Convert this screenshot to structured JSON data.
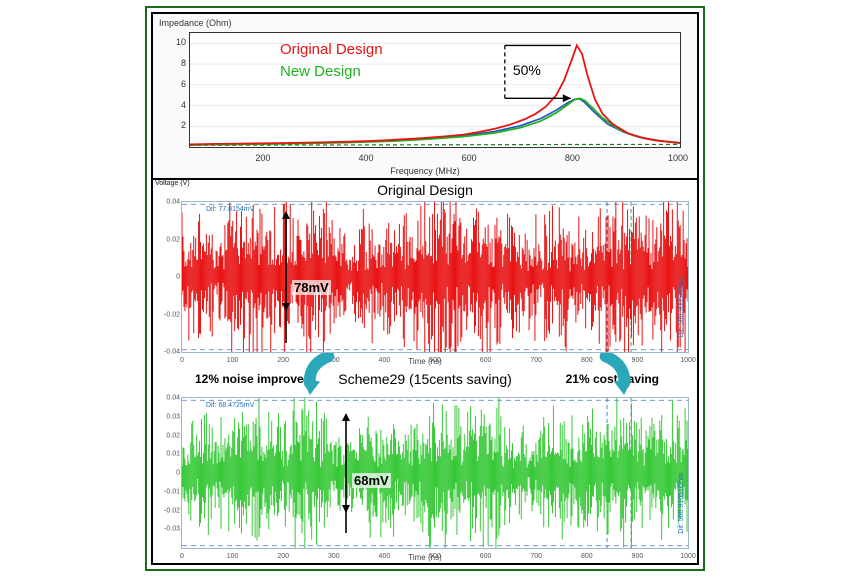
{
  "colors": {
    "frame_border": "#1a6b1a",
    "panel_border": "#000000",
    "plot_bg": "#ffffff",
    "axis_color": "#333333",
    "gridline": "#d8d8d8",
    "series_original": "#e81313",
    "series_new": "#1fb21f",
    "series_blue": "#2653c9",
    "series_dashgreen": "#1b7c1b",
    "noise_original": "#e81313",
    "noise_new": "#37c837",
    "arrow_fill": "#2aa7b8",
    "arrow_stroke": "#0e6b78",
    "marker_blue": "#1b6dbd",
    "marker_green": "#0f8a3a",
    "marker_dash": "#4a74c4"
  },
  "top_chart": {
    "type": "line",
    "y_title": "Impedance (Ohm)",
    "x_title": "Frequency (MHz)",
    "xlim": [
      50,
      1000
    ],
    "ylim": [
      0,
      11
    ],
    "x_ticks": [
      200,
      400,
      600,
      800,
      1000
    ],
    "y_ticks": [
      2,
      4,
      6,
      8,
      10
    ],
    "legend": {
      "original": {
        "text": "Original Design",
        "color": "#e81313"
      },
      "new": {
        "text": "New Design",
        "color": "#1fb21f"
      }
    },
    "callout": {
      "text": "50%",
      "from_y": 9.8,
      "to_y": 4.7
    },
    "series": {
      "original": [
        [
          50,
          0.25
        ],
        [
          100,
          0.3
        ],
        [
          150,
          0.33
        ],
        [
          200,
          0.36
        ],
        [
          250,
          0.4
        ],
        [
          300,
          0.44
        ],
        [
          350,
          0.5
        ],
        [
          400,
          0.58
        ],
        [
          450,
          0.7
        ],
        [
          500,
          0.85
        ],
        [
          550,
          1.05
        ],
        [
          580,
          1.2
        ],
        [
          610,
          1.45
        ],
        [
          640,
          1.75
        ],
        [
          670,
          2.15
        ],
        [
          700,
          2.7
        ],
        [
          720,
          3.2
        ],
        [
          740,
          3.9
        ],
        [
          760,
          5.0
        ],
        [
          775,
          6.4
        ],
        [
          790,
          8.4
        ],
        [
          800,
          9.8
        ],
        [
          810,
          9.0
        ],
        [
          820,
          7.0
        ],
        [
          835,
          4.6
        ],
        [
          850,
          3.2
        ],
        [
          870,
          2.2
        ],
        [
          900,
          1.3
        ],
        [
          930,
          0.85
        ],
        [
          960,
          0.6
        ],
        [
          1000,
          0.4
        ]
      ],
      "new": [
        [
          50,
          0.2
        ],
        [
          150,
          0.27
        ],
        [
          250,
          0.33
        ],
        [
          350,
          0.42
        ],
        [
          450,
          0.58
        ],
        [
          520,
          0.78
        ],
        [
          580,
          1.0
        ],
        [
          640,
          1.35
        ],
        [
          690,
          1.85
        ],
        [
          730,
          2.5
        ],
        [
          760,
          3.3
        ],
        [
          780,
          4.0
        ],
        [
          795,
          4.55
        ],
        [
          805,
          4.7
        ],
        [
          815,
          4.5
        ],
        [
          830,
          3.8
        ],
        [
          850,
          2.8
        ],
        [
          880,
          1.75
        ],
        [
          910,
          1.1
        ],
        [
          950,
          0.65
        ],
        [
          1000,
          0.38
        ]
      ],
      "blue": [
        [
          50,
          0.2
        ],
        [
          150,
          0.27
        ],
        [
          250,
          0.34
        ],
        [
          350,
          0.44
        ],
        [
          450,
          0.62
        ],
        [
          520,
          0.85
        ],
        [
          580,
          1.1
        ],
        [
          640,
          1.5
        ],
        [
          690,
          2.05
        ],
        [
          730,
          2.75
        ],
        [
          760,
          3.55
        ],
        [
          780,
          4.2
        ],
        [
          795,
          4.6
        ],
        [
          805,
          4.65
        ],
        [
          815,
          4.3
        ],
        [
          835,
          3.3
        ],
        [
          860,
          2.2
        ],
        [
          890,
          1.45
        ],
        [
          920,
          0.95
        ],
        [
          960,
          0.6
        ],
        [
          1000,
          0.4
        ]
      ],
      "dashgreen": [
        [
          50,
          0.15
        ],
        [
          200,
          0.18
        ],
        [
          400,
          0.2
        ],
        [
          600,
          0.22
        ],
        [
          800,
          0.24
        ],
        [
          1000,
          0.25
        ]
      ]
    }
  },
  "bottom": {
    "original_title": "Original Design",
    "scheme_title": "Scheme29 (15cents saving)",
    "original_mv": "78mV",
    "new_mv": "68mV",
    "annot_left": "12% noise improved",
    "annot_right": "21% cost saving",
    "x_title": "Time (ns)",
    "y_title": "Voltage (V)",
    "xlim": [
      0,
      1000
    ],
    "x_ticks": [
      0,
      100,
      200,
      300,
      400,
      500,
      600,
      700,
      800,
      900,
      1000
    ],
    "original_plot": {
      "ylim": [
        -0.04,
        0.04
      ],
      "y_ticks": [
        "-0.04",
        "-0.02",
        "0",
        "0.02",
        "0.04"
      ],
      "amplitude": 0.039,
      "color": "#e81313",
      "marker_label": "Dif: 77.8154mV",
      "marker_right": "Dif: 500.90051Ohm"
    },
    "new_plot": {
      "ylim": [
        -0.04,
        0.04
      ],
      "y_ticks": [
        "-0.03",
        "-0.02",
        "-0.01",
        "0",
        "0.01",
        "0.02",
        "0.03",
        "0.04"
      ],
      "amplitude": 0.034,
      "color": "#37c837",
      "marker_label": "Dif: 68.4725mV",
      "marker_right": "Dif: 500.91051Ohm"
    }
  }
}
